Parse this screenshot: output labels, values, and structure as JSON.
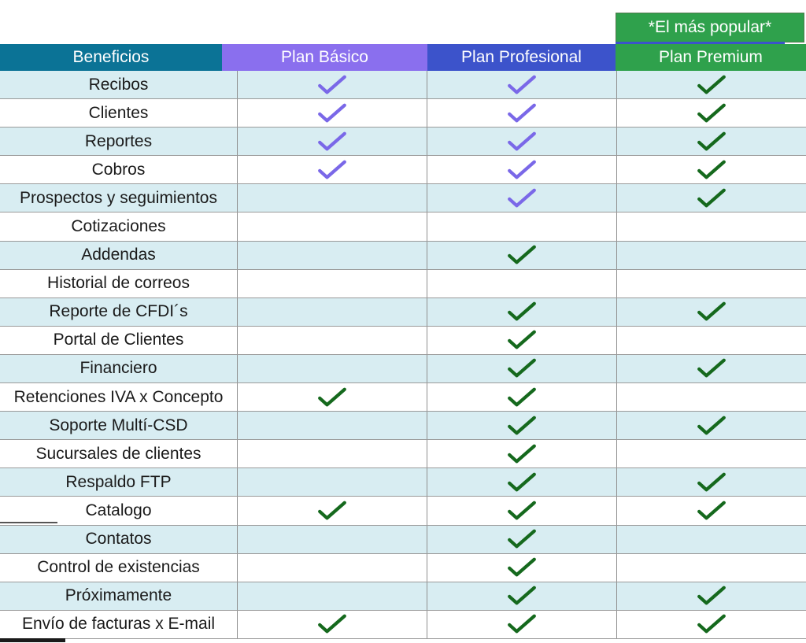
{
  "styles": {
    "header_colors": [
      "#0b7396",
      "#8a6fee",
      "#3c53cb",
      "#2fa14c"
    ],
    "banner_color": "#2fa14c",
    "banner_underline_color": "#3c53cb",
    "stripe_color": "#d8edf2",
    "check_colors": {
      "purple": "#7a68e8",
      "green": "#15691d"
    }
  },
  "chart_data": {
    "type": "table",
    "popular_label": "*El más popular*",
    "popular_column": "Plan Premium",
    "columns": [
      "Beneficios",
      "Plan Básico",
      "Plan Profesional",
      "Plan Premium"
    ],
    "rows": [
      {
        "benefit": "Recibos",
        "checks": [
          "purple",
          "purple",
          "green"
        ]
      },
      {
        "benefit": "Clientes",
        "checks": [
          "purple",
          "purple",
          "green"
        ]
      },
      {
        "benefit": "Reportes",
        "checks": [
          "purple",
          "purple",
          "green"
        ]
      },
      {
        "benefit": "Cobros",
        "checks": [
          "purple",
          "purple",
          "green"
        ]
      },
      {
        "benefit": "Prospectos y seguimientos",
        "checks": [
          null,
          "purple",
          "green"
        ]
      },
      {
        "benefit": "Cotizaciones",
        "checks": [
          null,
          null,
          null
        ]
      },
      {
        "benefit": "Addendas",
        "checks": [
          null,
          "green",
          null
        ]
      },
      {
        "benefit": "Historial de correos",
        "checks": [
          null,
          null,
          null
        ]
      },
      {
        "benefit": "Reporte de CFDI´s",
        "checks": [
          null,
          "green",
          "green"
        ]
      },
      {
        "benefit": "Portal de Clientes",
        "checks": [
          null,
          "green",
          null
        ]
      },
      {
        "benefit": "Financiero",
        "checks": [
          null,
          "green",
          "green"
        ]
      },
      {
        "benefit": "Retenciones IVA x Concepto",
        "checks": [
          "green",
          "green",
          null
        ]
      },
      {
        "benefit": "Soporte Multí-CSD",
        "checks": [
          null,
          "green",
          "green"
        ]
      },
      {
        "benefit": "Sucursales de clientes",
        "checks": [
          null,
          "green",
          null
        ]
      },
      {
        "benefit": "Respaldo FTP",
        "checks": [
          null,
          "green",
          "green"
        ]
      },
      {
        "benefit": "Catalogo",
        "checks": [
          "green",
          "green",
          "green"
        ]
      },
      {
        "benefit": "Contatos",
        "checks": [
          null,
          "green",
          null
        ]
      },
      {
        "benefit": "Control de existencias",
        "checks": [
          null,
          "green",
          null
        ]
      },
      {
        "benefit": "Próximamente",
        "checks": [
          null,
          "green",
          "green"
        ]
      },
      {
        "benefit": "Envío de facturas x E-mail",
        "checks": [
          "green",
          "green",
          "green"
        ]
      }
    ]
  }
}
